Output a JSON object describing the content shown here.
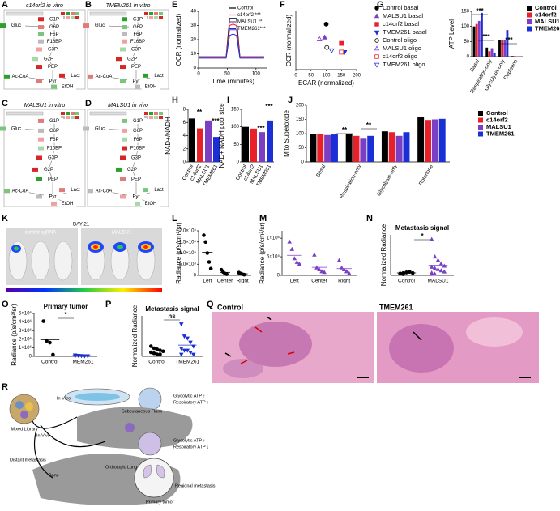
{
  "chart_data": [
    {
      "type": "line",
      "ylabel": "OCR (normalized)",
      "xlabel": "Time (minutes)",
      "xlim": [
        0,
        120
      ],
      "xticks": [
        0,
        50,
        100
      ],
      "ylim": [
        0,
        40
      ],
      "yticks": [
        0,
        10,
        20,
        30,
        40
      ],
      "x": [
        0,
        6,
        12,
        18,
        24,
        30,
        36,
        42,
        48,
        54,
        60,
        66,
        72,
        78,
        84,
        90,
        96,
        102,
        108,
        114
      ],
      "series": [
        {
          "name": "Control",
          "color": "#000000",
          "values": [
            8,
            8,
            8,
            8,
            8,
            8,
            8,
            8,
            8,
            35,
            35,
            35,
            8,
            8,
            8,
            8,
            8,
            8,
            8,
            8
          ]
        },
        {
          "name": "c14orf2 ***",
          "color": "#e8202a",
          "values": [
            8,
            8,
            8,
            8,
            8,
            8,
            8,
            8,
            8,
            30,
            31,
            30,
            8,
            8,
            8,
            8,
            8,
            8,
            8,
            8
          ]
        },
        {
          "name": "MALSU1 **",
          "color": "#7b3fc4",
          "values": [
            7,
            7,
            7,
            7,
            7,
            7,
            7,
            7,
            7,
            27,
            27,
            27,
            7,
            7,
            7,
            7,
            7,
            7,
            7,
            7
          ]
        },
        {
          "name": "TMEM261***",
          "color": "#1a2fd6",
          "values": [
            7,
            7,
            7,
            7,
            7,
            7,
            7,
            7,
            7,
            23,
            24,
            23,
            7,
            7,
            7,
            7,
            7,
            7,
            7,
            7
          ]
        }
      ]
    },
    {
      "type": "scatter",
      "ylabel": "OCR (normalized)",
      "xlabel": "ECAR (normalized)",
      "xlim": [
        0,
        200
      ],
      "xticks": [
        0,
        50,
        100,
        150,
        200
      ],
      "ylim": [
        0,
        100
      ],
      "series": [
        {
          "name": "Control basal",
          "color": "#000000",
          "marker": "circle",
          "filled": true,
          "x": [
            100
          ],
          "values": [
            78
          ]
        },
        {
          "name": "MALSU1 basal",
          "color": "#7b3fc4",
          "marker": "triangle",
          "filled": true,
          "x": [
            95
          ],
          "values": [
            55
          ]
        },
        {
          "name": "c14orf2 basal",
          "color": "#e8202a",
          "marker": "square",
          "filled": true,
          "x": [
            150
          ],
          "values": [
            45
          ]
        },
        {
          "name": "TMEM261 basal",
          "color": "#1a2fd6",
          "marker": "triangle-down",
          "filled": true,
          "x": [
            160
          ],
          "values": [
            30
          ]
        },
        {
          "name": "Control oligo",
          "color": "#000000",
          "marker": "circle",
          "filled": false,
          "x": [
            102
          ],
          "values": [
            38
          ]
        },
        {
          "name": "MALSU1 oligo",
          "color": "#7b3fc4",
          "marker": "triangle",
          "filled": false,
          "x": [
            78
          ],
          "values": [
            52
          ]
        },
        {
          "name": "c14orf2 oligo",
          "color": "#e8202a",
          "marker": "square",
          "filled": false,
          "x": [
            150
          ],
          "values": [
            30
          ]
        },
        {
          "name": "TMEM261 oligo",
          "color": "#1a2fd6",
          "marker": "triangle-down",
          "filled": false,
          "x": [
            118
          ],
          "values": [
            33
          ]
        }
      ]
    },
    {
      "type": "groupbar",
      "ylabel": "ATP Level",
      "categories": [
        "Basal",
        "Respiration-only",
        "Glycolysis-only",
        "Depletion"
      ],
      "ylim": [
        0,
        150
      ],
      "yticks": [
        0,
        50,
        100,
        150
      ],
      "annotations": [
        "***",
        "***",
        "***"
      ],
      "series": [
        {
          "name": "Control",
          "color": "#000000",
          "values": [
            100,
            30,
            55,
            2
          ]
        },
        {
          "name": "c14orf2",
          "color": "#e8202a",
          "values": [
            108,
            18,
            55,
            2
          ]
        },
        {
          "name": "MALSU1",
          "color": "#7b3fc4",
          "values": [
            118,
            28,
            55,
            1
          ]
        },
        {
          "name": "TMEM261",
          "color": "#1a2fd6",
          "values": [
            145,
            12,
            88,
            1
          ]
        }
      ]
    },
    {
      "type": "bar",
      "ylabel": "NAD+/NADH",
      "categories": [
        "Control",
        "c14orf2",
        "MALSU1",
        "TMEM261"
      ],
      "values": [
        6.6,
        5.1,
        6.3,
        3.8
      ],
      "colors": [
        "#000000",
        "#e8202a",
        "#7b3fc4",
        "#1a2fd6"
      ],
      "ylim": [
        0,
        8
      ],
      "yticks": [
        0,
        2,
        4,
        6,
        8
      ],
      "annotations": [
        "**",
        "***"
      ]
    },
    {
      "type": "bar",
      "ylabel": "NAD+ NADH pool size",
      "categories": [
        "Control",
        "c14orf2",
        "MALSU1",
        "TMEM261"
      ],
      "values": [
        100,
        95,
        85,
        118
      ],
      "colors": [
        "#000000",
        "#e8202a",
        "#7b3fc4",
        "#1a2fd6"
      ],
      "ylim": [
        0,
        150
      ],
      "yticks": [
        0,
        50,
        100,
        150
      ],
      "annotations": [
        "***",
        "***"
      ]
    },
    {
      "type": "groupbar",
      "ylabel": "Mito Superoxide",
      "categories": [
        "Basal",
        "Respiration-only",
        "Glycolysis-only",
        "Rotenone"
      ],
      "ylim": [
        0,
        200
      ],
      "yticks": [
        0,
        50,
        100,
        150,
        200
      ],
      "annotations": [
        "**",
        "**"
      ],
      "series": [
        {
          "name": "Control",
          "color": "#000000",
          "values": [
            100,
            98,
            108,
            160
          ]
        },
        {
          "name": "c14orf2",
          "color": "#e8202a",
          "values": [
            98,
            92,
            105,
            148
          ]
        },
        {
          "name": "MALSU1",
          "color": "#7b3fc4",
          "values": [
            95,
            82,
            92,
            150
          ]
        },
        {
          "name": "TMEM261",
          "color": "#1a2fd6",
          "values": [
            97,
            92,
            105,
            152
          ]
        }
      ]
    },
    {
      "type": "strip",
      "ylabel": "Radiance (p/s/cm²/sr)",
      "categories": [
        "Left",
        "Center",
        "Right"
      ],
      "ylim": [
        0,
        200000
      ],
      "yticks": [
        0,
        {
          "value": 50000,
          "label": "5.0×10⁴"
        },
        {
          "value": 100000,
          "label": "1.0×10⁵"
        },
        {
          "value": 150000,
          "label": "1.5×10⁵"
        },
        {
          "value": 200000,
          "label": "2.0×10⁵"
        }
      ],
      "colors": [
        "#000000",
        "#000000",
        "#000000"
      ],
      "markers": [
        "circle",
        "circle",
        "circle"
      ],
      "groups": [
        [
          180000,
          150000,
          100000,
          60000,
          30000
        ],
        [
          25000,
          15000,
          8000,
          5000
        ],
        [
          12000,
          8000,
          5000,
          3000
        ]
      ]
    },
    {
      "type": "strip",
      "ylabel": "Radiance (p/s/cm²/sr)",
      "categories": [
        "Left",
        "Center",
        "Right"
      ],
      "ylim": [
        0,
        1200000
      ],
      "yticks": [
        0,
        {
          "value": 500000,
          "label": "5×10⁵"
        },
        {
          "value": 1000000,
          "label": "1×10⁶"
        }
      ],
      "colors": [
        "#7b3fc4",
        "#7b3fc4",
        "#7b3fc4"
      ],
      "markers": [
        "triangle",
        "triangle",
        "triangle"
      ],
      "groups": [
        [
          900000,
          700000,
          450000,
          350000,
          300000
        ],
        [
          550000,
          200000,
          150000,
          100000,
          80000
        ],
        [
          400000,
          200000,
          150000,
          100000,
          50000
        ]
      ]
    },
    {
      "type": "strip",
      "title": "Metastasis signal",
      "ylabel": "Normalized Radiance",
      "categories": [
        "Control",
        "MALSU1"
      ],
      "ylim": [
        0,
        3.5
      ],
      "annotations": [
        "*"
      ],
      "colors": [
        "#000000",
        "#7b3fc4"
      ],
      "markers": [
        "circle",
        "triangle"
      ],
      "groups": [
        [
          0.15,
          0.2,
          0.25,
          0.3,
          0.2,
          0.15,
          0.1,
          0.25,
          0.3
        ],
        [
          3.1,
          1.6,
          1.3,
          1.0,
          0.8,
          0.7,
          0.6,
          0.5,
          0.4,
          0.3,
          0.2,
          0.1
        ]
      ]
    },
    {
      "type": "strip",
      "title": "Primary tumor",
      "ylabel": "Radiance (p/s/cm²/sr)",
      "categories": [
        "Control",
        "TMEM261"
      ],
      "ylim": [
        0,
        5000000
      ],
      "annotations": [
        "*"
      ],
      "yticks": [
        0,
        {
          "value": 1000000,
          "label": "1×10⁶"
        },
        {
          "value": 2000000,
          "label": "2×10⁶"
        },
        {
          "value": 3000000,
          "label": "3×10⁶"
        },
        {
          "value": 4000000,
          "label": "4×10⁶"
        },
        {
          "value": 5000000,
          "label": "5×10⁶"
        }
      ],
      "colors": [
        "#000000",
        "#1a2fd6"
      ],
      "markers": [
        "circle",
        "triangle-down"
      ],
      "groups": [
        [
          4100000,
          1800000,
          1600000,
          200000
        ],
        [
          150000,
          100000,
          80000,
          60000,
          50000,
          40000
        ]
      ]
    },
    {
      "type": "strip",
      "title": "Metastasis signal",
      "ylabel": "Normalized Radiance",
      "categories": [
        "Control",
        "TMEM261"
      ],
      "ylim": [
        0,
        2
      ],
      "annotations": [
        "ns"
      ],
      "colors": [
        "#000000",
        "#1a2fd6"
      ],
      "markers": [
        "circle",
        "triangle-down"
      ],
      "groups": [
        [
          0.5,
          0.4,
          0.35,
          0.3,
          0.25,
          0.2,
          0.15,
          0.1,
          0.1
        ],
        [
          1.6,
          1.0,
          0.9,
          0.7,
          0.5,
          0.4,
          0.3,
          0.3,
          0.2,
          0.1,
          0.1
        ]
      ]
    }
  ],
  "panel_labels": [
    "A",
    "B",
    "C",
    "D",
    "E",
    "F",
    "G",
    "H",
    "I",
    "J",
    "K",
    "L",
    "M",
    "N",
    "O",
    "P",
    "Q",
    "R"
  ],
  "pathway": {
    "titles": [
      "c14orf2 in vitro",
      "TMEM261 in vitro",
      "MALSU1 in vitro",
      "MALSU1 in vivo"
    ],
    "nodes": [
      "G1P",
      "Gluc",
      "G6P",
      "F6P",
      "F16BP",
      "G3P",
      "G2P",
      "PEP",
      "Lact",
      "Ac-CoA",
      "Pyr",
      "EtOH"
    ]
  },
  "imaging": {
    "labels": [
      "control sgRNA",
      "DAY 21",
      "MALSU1"
    ]
  },
  "histology": {
    "labels": [
      "Control",
      "TMEM261"
    ]
  },
  "model": {
    "labels": [
      "Mixed Library",
      "In Vitro",
      "In Vivo",
      "Subcutaneous Flank",
      "Glycolytic ATP ↑",
      "Respiratory ATP ↑",
      "Glycolytic ATP ↑",
      "Respiratory ATP ↓",
      "Distant metastasis",
      "Bone",
      "Orthotopic Lung",
      "Regional metastasis",
      "Primary tumor"
    ]
  }
}
